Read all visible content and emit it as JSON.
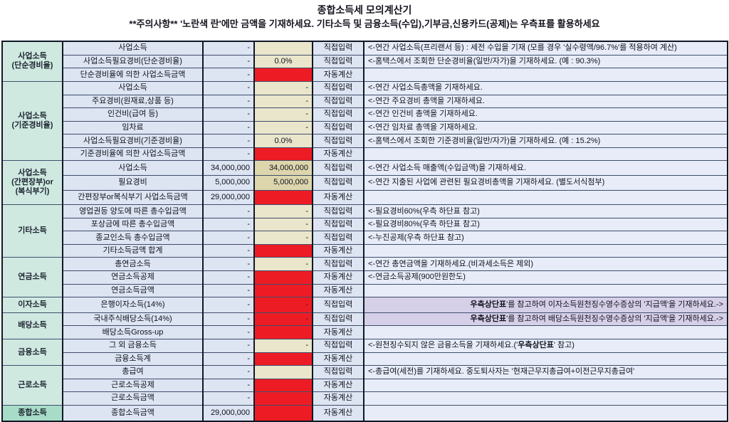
{
  "header": {
    "title": "종합소득세 모의계산기",
    "subtitle": "**주의사항** '노란색 란'에만 금액을 기재하세요. 기타소득 및 금융소득(수입),기부금,신용카드(공제)는 우측표를 활용하세요"
  },
  "colors": {
    "group_mint": "#cfe9e1",
    "group_mint_accent": "#a7dcc8",
    "cell_blue": "#dde4f2",
    "input_yellow": "#eae6cc",
    "input_yellow_filled": "#ddd6ad",
    "auto_calc_red": "#ed1c24",
    "note_purple": "#d6cfe8",
    "note_bg": "#e7ecf8"
  },
  "groups": [
    {
      "lines": [
        "사업소득",
        "(단순경비율)"
      ],
      "span": 3,
      "accent": false
    },
    {
      "lines": [
        "사업소득",
        "(기준경비율)"
      ],
      "span": 6,
      "accent": false
    },
    {
      "lines": [
        "사업소득",
        "(간편장부)or",
        "(복식부기)"
      ],
      "span": 3,
      "accent": false
    },
    {
      "lines": [
        "기타소득"
      ],
      "span": 4,
      "accent": false
    },
    {
      "lines": [
        "연금소득"
      ],
      "span": 3,
      "accent": false
    },
    {
      "lines": [
        "이자소득"
      ],
      "span": 1,
      "accent": false
    },
    {
      "lines": [
        "배당소득"
      ],
      "span": 2,
      "accent": false
    },
    {
      "lines": [
        "금융소득"
      ],
      "span": 2,
      "accent": false
    },
    {
      "lines": [
        "근로소득"
      ],
      "span": 3,
      "accent": false
    },
    {
      "lines": [
        "종합소득"
      ],
      "span": 1,
      "accent": true
    }
  ],
  "rows": [
    {
      "group": 0,
      "label": "사업소득",
      "value": "-",
      "input": {
        "style": "yellow",
        "text": ""
      },
      "mode": "직접입력",
      "note": {
        "pre": "<-연간 사업소득(프리랜서 등) : 세전 수입을 기재 (모를 경우 '실수령액/96.7%'를 적용하여 계산)"
      }
    },
    {
      "label": "사업소득필요경비(단순경비율)",
      "value": "-",
      "input": {
        "style": "yellow",
        "text": "0.0%",
        "align": "center"
      },
      "mode": "직접입력",
      "note": {
        "pre": "<-홈택스에서 조회한 단순경비율(일반/자가)을 기재하세요. (예 : 90.3%)"
      }
    },
    {
      "label": "단순경비율에 의한 사업소득금액",
      "value": "-",
      "input": {
        "style": "red",
        "text": ""
      },
      "mode": "자동계산"
    },
    {
      "group": 1,
      "label": "사업소득",
      "value": "-",
      "input": {
        "style": "yellow",
        "text": "-"
      },
      "mode": "직접입력",
      "note": {
        "pre": "<-연간 사업소득총액을 기재하세요."
      }
    },
    {
      "label": "주요경비(원재료,상품 등)",
      "value": "-",
      "input": {
        "style": "yellow",
        "text": "-"
      },
      "mode": "직접입력",
      "note": {
        "pre": "<-연간 주요경비 총액을 기재하세요."
      }
    },
    {
      "label": "인건비(급여 등)",
      "value": "-",
      "input": {
        "style": "yellow",
        "text": "-"
      },
      "mode": "직접입력",
      "note": {
        "pre": "<-연간 인건비 총액을 기재하세요."
      }
    },
    {
      "label": "임차료",
      "value": "-",
      "input": {
        "style": "yellow",
        "text": "-"
      },
      "mode": "직접입력",
      "note": {
        "pre": "<-연간 임차료 총액을 기재하세요."
      }
    },
    {
      "label": "사업소득필요경비(기준경비율)",
      "value": "-",
      "input": {
        "style": "yellow",
        "text": "0.0%",
        "align": "center"
      },
      "mode": "직접입력",
      "note": {
        "pre": "<-홈택스에서 조회한 기준경비율(일반/자가)을 기재하세요. (예 : 15.2%)"
      }
    },
    {
      "label": "기준경비율에 의한 사업소득금액",
      "value": "-",
      "input": {
        "style": "red",
        "text": ""
      },
      "mode": "자동계산"
    },
    {
      "group": 2,
      "label": "사업소득",
      "value": "34,000,000",
      "input": {
        "style": "yellow",
        "filled": true,
        "text": "34,000,000"
      },
      "mode": "직접입력",
      "note": {
        "pre": "<-연간 사업소득 매출액(수입금액)을 기재하세요."
      }
    },
    {
      "label": "필요경비",
      "value": "5,000,000",
      "input": {
        "style": "yellow",
        "filled": true,
        "text": "5,000,000"
      },
      "mode": "직접입력",
      "note": {
        "pre": "<-연간 지출된 사업에 관련된 필요경비총액을 기재하세요. (별도서식첨부)"
      }
    },
    {
      "label": "간편장부or복식부기 사업소득금액",
      "value": "29,000,000",
      "input": {
        "style": "red",
        "text": ""
      },
      "mode": "자동계산"
    },
    {
      "group": 3,
      "label": "영업권등 양도에 따른 총수입금액",
      "value": "-",
      "input": {
        "style": "yellow",
        "text": "-"
      },
      "mode": "직접입력",
      "note": {
        "pre": "<-필요경비60%(우측 하단표 참고)"
      }
    },
    {
      "label": "포상금에 따른 총수입금액",
      "value": "-",
      "input": {
        "style": "yellow",
        "text": "-"
      },
      "mode": "직접입력",
      "note": {
        "pre": "<-필요경비80%(우측 하단표 참고)"
      }
    },
    {
      "label": "종교인소득 총수입금액",
      "value": "-",
      "input": {
        "style": "yellow",
        "text": "-"
      },
      "mode": "직접입력",
      "note": {
        "pre": "<-누진공제(우측 하단표 참고)"
      }
    },
    {
      "label": "기타소득금액 합계",
      "value": "-",
      "input": {
        "style": "red",
        "text": ""
      },
      "mode": "자동계산"
    },
    {
      "group": 4,
      "label": "총연금소득",
      "value": "-",
      "input": {
        "style": "yellow",
        "text": "-"
      },
      "mode": "직접입력",
      "note": {
        "pre": "<-연간 총연금액을 기재하세요.(비과세소득은 제외)"
      }
    },
    {
      "label": "연금소득공제",
      "value": "-",
      "input": {
        "style": "red",
        "text": ""
      },
      "mode": "자동계산",
      "note": {
        "pre": "<-연금소득공제(900만원한도)"
      }
    },
    {
      "label": "연금소득금액",
      "value": "-",
      "input": {
        "style": "red",
        "text": ""
      },
      "mode": "자동계산"
    },
    {
      "group": 5,
      "label": "은행이자소득(14%)",
      "value": "-",
      "input": {
        "style": "red",
        "text": "-"
      },
      "mode": "직접입력",
      "note": {
        "style": "purple",
        "bold": "우측상단표",
        "post": "'를 참고하여 이자소득원천징수영수증상의 '지급액'을 기재하세요.->"
      }
    },
    {
      "group": 6,
      "label": "국내주식배당소득(14%)",
      "value": "-",
      "input": {
        "style": "red",
        "text": "-"
      },
      "mode": "직접입력",
      "note": {
        "style": "purple",
        "bold": "우측상단표",
        "post": "'를 참고하여 배당소득원천징수영수증상의 '지급액'을 기재하세요.->"
      }
    },
    {
      "label": "배당소득Gross-up",
      "value": "-",
      "input": {
        "style": "red",
        "text": ""
      },
      "mode": "자동계산"
    },
    {
      "group": 7,
      "label": "그 외 금융소득",
      "value": "-",
      "input": {
        "style": "yellow",
        "text": "-"
      },
      "mode": "직접입력",
      "note": {
        "pre": "<-원천징수되지 않은 금융소득을 기재하세요.('",
        "bold": "우측상단표",
        "post": "' 참고)"
      }
    },
    {
      "label": "금융소득계",
      "value": "-",
      "input": {
        "style": "red",
        "text": ""
      },
      "mode": "자동계산"
    },
    {
      "group": 8,
      "label": "총급여",
      "value": "-",
      "input": {
        "style": "yellow",
        "text": ""
      },
      "mode": "직접입력",
      "note": {
        "pre": "<-총급여(세전)를 기재하세요. 중도퇴사자는 '현재근무지총급여+이전근무지총급여'"
      }
    },
    {
      "label": "근로소득공제",
      "value": "-",
      "input": {
        "style": "red",
        "text": ""
      },
      "mode": "자동계산"
    },
    {
      "label": "근로소득금액",
      "value": "-",
      "input": {
        "style": "red",
        "text": ""
      },
      "mode": "자동계산"
    },
    {
      "group": 9,
      "label": "종합소득금액",
      "value": "29,000,000",
      "input": {
        "style": "red",
        "text": ""
      },
      "mode": "자동계산"
    }
  ]
}
